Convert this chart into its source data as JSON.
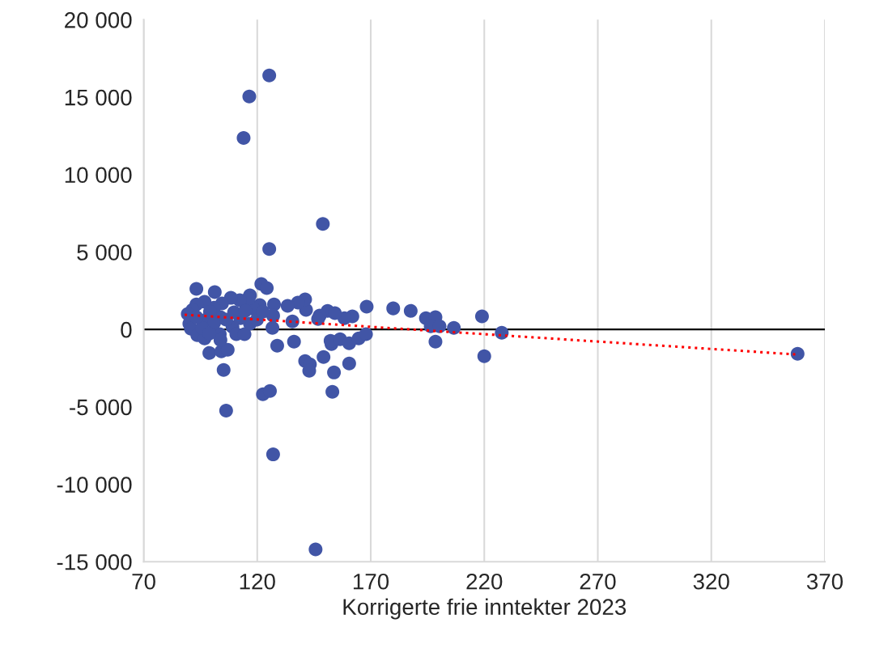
{
  "chart_data": {
    "type": "scatter",
    "xlabel": "Korrigerte frie inntekter 2023",
    "series": [
      {
        "color": "#4155a6",
        "marker": "circle",
        "x": [
          125.3,
          116.5,
          114.0,
          148.9,
          125.3,
          121.8,
          124.2,
          93.2,
          101.3,
          116.8,
          122.5,
          125.6,
          106.3,
          127.0,
          145.7,
          105.2,
          98.9,
          104.2,
          107.0,
          128.8,
          136.2,
          141.1,
          143.2,
          142.9,
          149.2,
          153.1,
          153.8,
          160.5,
          152.7,
          152.3,
          156.5,
          160.5,
          164.7,
          167.9,
          198.5,
          220.0,
          227.7,
          358.0,
          168.2,
          179.9,
          187.6,
          194.3,
          198.5,
          196.4,
          200.3,
          206.6,
          219.0,
          161.9,
          158.4,
          151.0,
          154.2,
          147.5,
          146.8,
          141.5,
          141.1,
          137.9,
          133.4,
          127.4,
          127.0,
          126.7,
          135.5,
          121.1,
          118.6,
          116.1,
          112.3,
          108.4,
          104.5,
          101.0,
          96.8,
          93.2,
          91.5,
          89.4,
          90.1,
          90.8,
          93.6,
          96.8,
          103.5,
          109.1,
          110.8,
          114.4,
          116.8,
          119.9,
          122.5,
          103.8,
          97.5,
          101.0,
          95.7,
          106.3,
          112.6,
          93.2,
          99.2,
          109.8,
          114.7,
          103.8,
          98.9
        ],
        "values": [
          16400,
          15040,
          12370,
          6810,
          5190,
          2930,
          2670,
          2620,
          2410,
          2200,
          -4190,
          -3980,
          -5240,
          -8070,
          -14200,
          -2620,
          -1520,
          -1410,
          -1310,
          -1050,
          -790,
          -2040,
          -2250,
          -2670,
          -1780,
          -4030,
          -2780,
          -2200,
          -940,
          -730,
          -630,
          -890,
          -580,
          -310,
          -790,
          -1730,
          -210,
          -1570,
          1470,
          1360,
          1200,
          730,
          790,
          210,
          210,
          100,
          840,
          840,
          730,
          1200,
          1050,
          890,
          680,
          1260,
          1940,
          1730,
          1520,
          1620,
          890,
          100,
          520,
          1570,
          1310,
          1990,
          1890,
          2040,
          1680,
          1410,
          1780,
          1620,
          1260,
          1000,
          370,
          50,
          -370,
          -580,
          -310,
          160,
          -310,
          -310,
          370,
          630,
          1150,
          790,
          630,
          420,
          100,
          630,
          730,
          790,
          1150,
          1100,
          1200,
          -680,
          -260
        ]
      },
      {
        "type": "line",
        "color": "#ff0000",
        "line_style": "dotted",
        "x": [
          88,
          358
        ],
        "values": [
          950,
          -1620
        ]
      }
    ],
    "xlim": [
      70,
      370
    ],
    "xticks": [
      70,
      120,
      170,
      220,
      270,
      320,
      370
    ],
    "ylim": [
      -15000,
      20000
    ],
    "yticks": [
      {
        "value": -15000,
        "label": "-15 000"
      },
      {
        "value": -10000,
        "label": "-10 000"
      },
      {
        "value": -5000,
        "label": "-5 000"
      },
      0,
      {
        "value": 5000,
        "label": "5 000"
      },
      {
        "value": 10000,
        "label": "10 000"
      },
      {
        "value": 15000,
        "label": "15 000"
      },
      {
        "value": 20000,
        "label": "20 000"
      }
    ],
    "grid": "x",
    "ref_lines": [
      {
        "axis": "y",
        "value": 0,
        "color": "#000000"
      }
    ]
  }
}
